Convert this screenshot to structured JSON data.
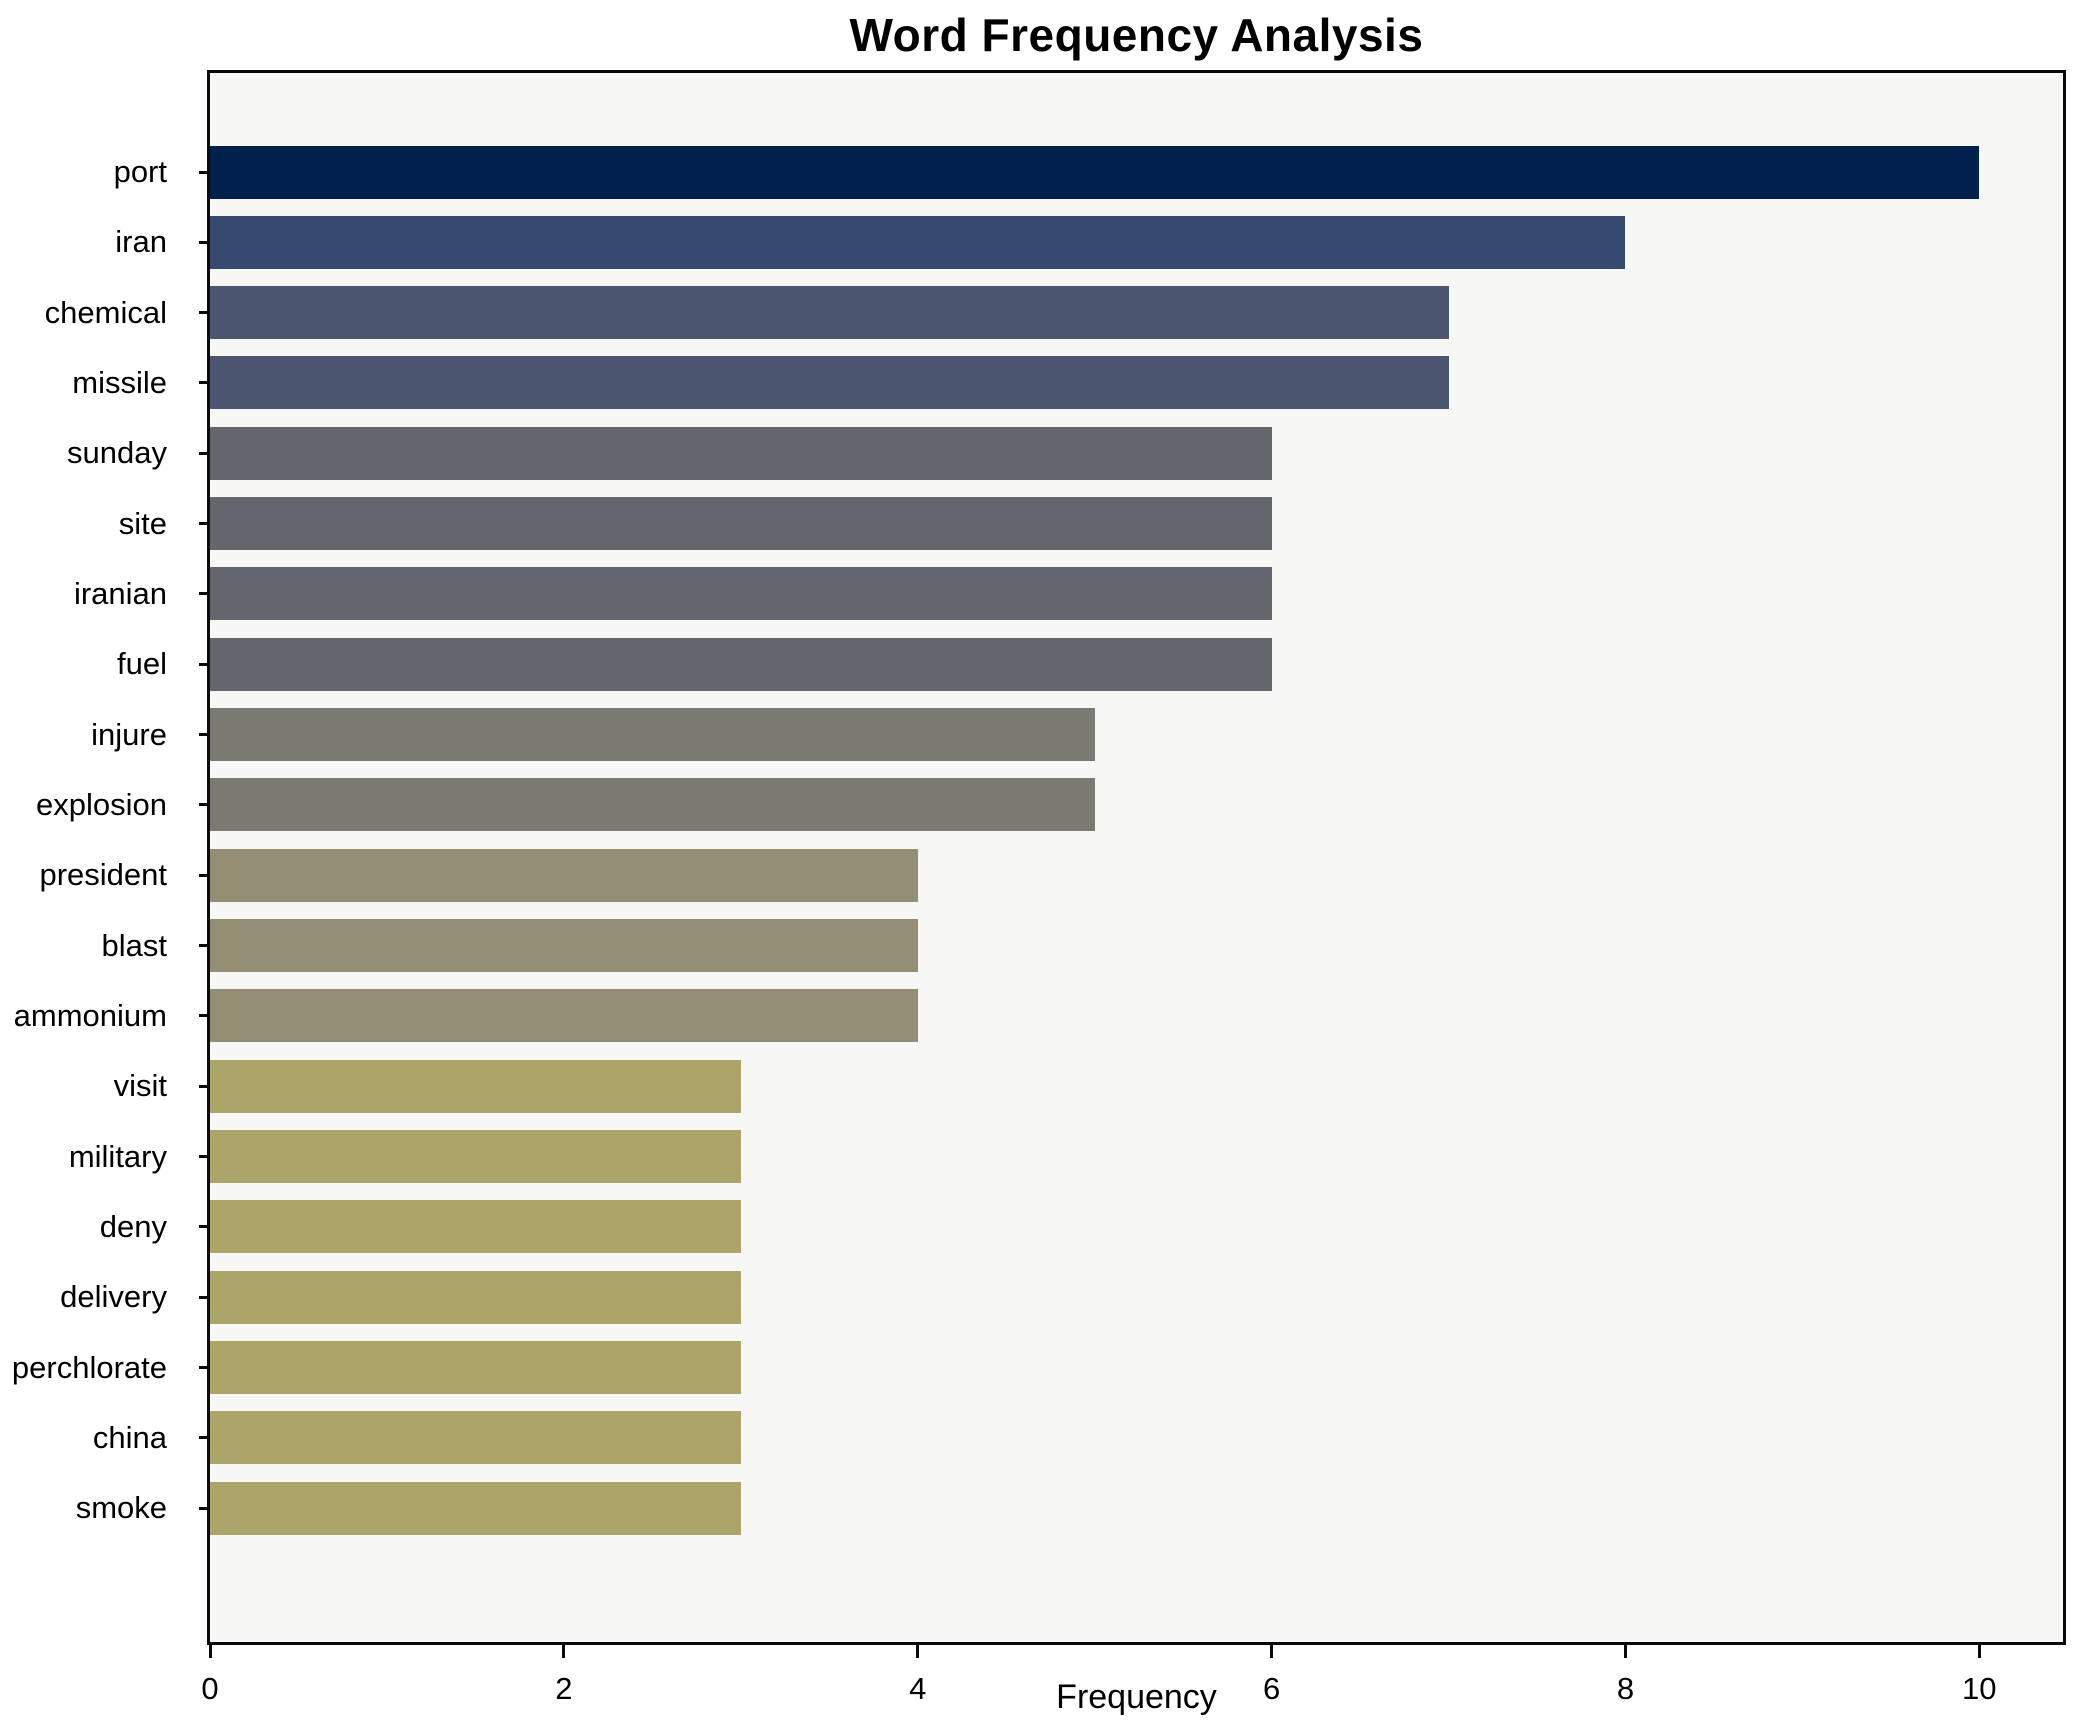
{
  "chart_data": {
    "type": "bar",
    "orientation": "horizontal",
    "title": "Word Frequency Analysis",
    "xlabel": "Frequency",
    "ylabel": "",
    "categories": [
      "port",
      "iran",
      "chemical",
      "missile",
      "sunday",
      "site",
      "iranian",
      "fuel",
      "injure",
      "explosion",
      "president",
      "blast",
      "ammonium",
      "visit",
      "military",
      "deny",
      "delivery",
      "perchlorate",
      "china",
      "smoke"
    ],
    "values": [
      10,
      8,
      7,
      7,
      6,
      6,
      6,
      6,
      5,
      5,
      4,
      4,
      4,
      3,
      3,
      3,
      3,
      3,
      3,
      3
    ],
    "bar_colors": [
      "#01214d",
      "#36496e",
      "#4d5670",
      "#4d5670",
      "#64666e",
      "#64666e",
      "#64666e",
      "#64666e",
      "#7a7972",
      "#7a7972",
      "#948e74",
      "#948e74",
      "#948e74",
      "#ada46a",
      "#ada46a",
      "#ada46a",
      "#ada46a",
      "#ada46a",
      "#ada46a",
      "#ada46a"
    ],
    "x_ticks": [
      "0",
      "2",
      "4",
      "6",
      "8",
      "10"
    ],
    "x_tick_values": [
      0,
      2,
      4,
      6,
      8,
      10
    ],
    "xlim": [
      0,
      10.49
    ],
    "grid": false,
    "legend": null,
    "plot_background": "#f7f7f6",
    "figure_background": "#ffffff",
    "spine_color": "#0a0a0a",
    "text_color": "#000000"
  }
}
